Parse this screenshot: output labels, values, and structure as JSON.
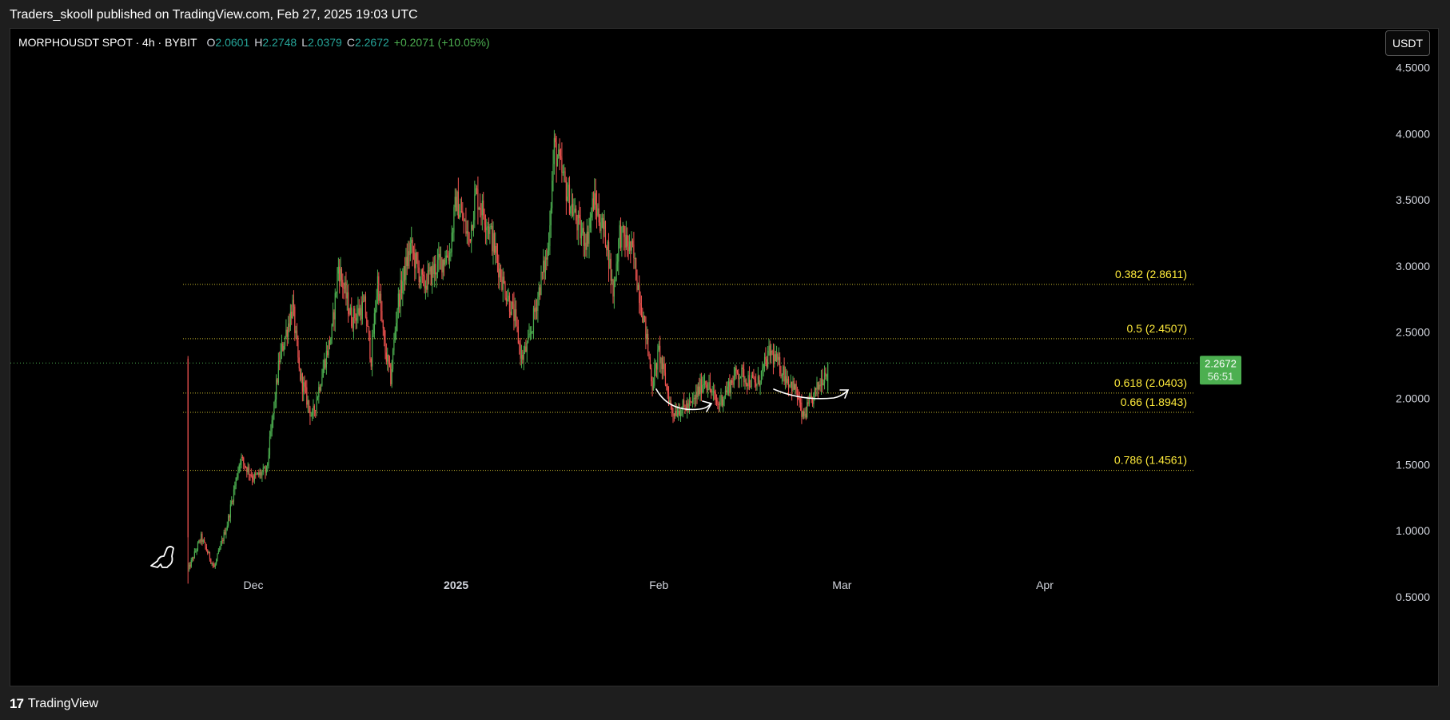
{
  "publish_info": "Traders_skooll published on TradingView.com, Feb 27, 2025 19:03 UTC",
  "symbol": {
    "name": "MORPHOUSDT SPOT · 4h · BYBIT",
    "o_label": "O",
    "o_value": "2.0601",
    "h_label": "H",
    "h_value": "2.2748",
    "l_label": "L",
    "l_value": "2.0379",
    "c_label": "C",
    "c_value": "2.2672",
    "change": "+0.2071 (+10.05%)"
  },
  "currency_button": "USDT",
  "footer": {
    "logo_mark": "17",
    "brand": "TradingView"
  },
  "colors": {
    "background": "#000000",
    "up": "#4caf50",
    "down": "#ef5350",
    "fib": "#ffeb3b",
    "price_tag": "#4caf50"
  },
  "chart_data": {
    "type": "candlestick",
    "price_scale": {
      "min": 0.3,
      "max": 4.6,
      "ticks": [
        "0.5000",
        "1.0000",
        "1.5000",
        "2.0000",
        "2.5000",
        "3.0000",
        "3.5000",
        "4.0000",
        "4.5000"
      ]
    },
    "time_labels": [
      {
        "label": "Dec",
        "date": "2024-12-01"
      },
      {
        "label": "2025",
        "date": "2025-01-01"
      },
      {
        "label": "Feb",
        "date": "2025-02-01"
      },
      {
        "label": "Mar",
        "date": "2025-03-01"
      },
      {
        "label": "Apr",
        "date": "2025-04-01"
      }
    ],
    "current_price": {
      "value": 2.2672,
      "label": "2.2672",
      "countdown": "56:51"
    },
    "fib_levels": [
      {
        "label": "0.382 (2.8611)",
        "value": 2.8611
      },
      {
        "label": "0.5 (2.4507)",
        "value": 2.4507
      },
      {
        "label": "0.618 (2.0403)",
        "value": 2.0403
      },
      {
        "label": "0.66 (1.8943)",
        "value": 1.8943
      },
      {
        "label": "0.786 (1.4561)",
        "value": 1.4561
      }
    ],
    "close_path": [
      [
        "2024-11-21",
        0.7
      ],
      [
        "2024-11-23",
        0.95
      ],
      [
        "2024-11-25",
        0.72
      ],
      [
        "2024-11-27",
        1.05
      ],
      [
        "2024-11-29",
        1.55
      ],
      [
        "2024-12-01",
        1.4
      ],
      [
        "2024-12-03",
        1.45
      ],
      [
        "2024-12-05",
        2.3
      ],
      [
        "2024-12-07",
        2.7
      ],
      [
        "2024-12-08",
        2.2
      ],
      [
        "2024-12-10",
        1.85
      ],
      [
        "2024-12-12",
        2.3
      ],
      [
        "2024-12-13",
        2.5
      ],
      [
        "2024-12-14",
        3.0
      ],
      [
        "2024-12-16",
        2.6
      ],
      [
        "2024-12-18",
        2.7
      ],
      [
        "2024-12-19",
        2.3
      ],
      [
        "2024-12-20",
        2.9
      ],
      [
        "2024-12-21",
        2.4
      ],
      [
        "2024-12-22",
        2.15
      ],
      [
        "2024-12-23",
        2.7
      ],
      [
        "2024-12-25",
        3.15
      ],
      [
        "2024-12-27",
        2.85
      ],
      [
        "2024-12-29",
        3.0
      ],
      [
        "2024-12-31",
        3.1
      ],
      [
        "2025-01-01",
        3.5
      ],
      [
        "2025-01-03",
        3.2
      ],
      [
        "2025-01-04",
        3.55
      ],
      [
        "2025-01-06",
        3.3
      ],
      [
        "2025-01-08",
        2.9
      ],
      [
        "2025-01-10",
        2.6
      ],
      [
        "2025-01-11",
        2.3
      ],
      [
        "2025-01-12",
        2.4
      ],
      [
        "2025-01-14",
        2.9
      ],
      [
        "2025-01-15",
        3.1
      ],
      [
        "2025-01-16",
        3.9
      ],
      [
        "2025-01-18",
        3.55
      ],
      [
        "2025-01-20",
        3.25
      ],
      [
        "2025-01-21",
        3.2
      ],
      [
        "2025-01-22",
        3.5
      ],
      [
        "2025-01-24",
        3.2
      ],
      [
        "2025-01-25",
        2.8
      ],
      [
        "2025-01-26",
        3.25
      ],
      [
        "2025-01-28",
        3.1
      ],
      [
        "2025-01-30",
        2.5
      ],
      [
        "2025-01-31",
        2.1
      ],
      [
        "2025-02-01",
        2.35
      ],
      [
        "2025-02-03",
        1.9
      ],
      [
        "2025-02-06",
        1.95
      ],
      [
        "2025-02-08",
        2.15
      ],
      [
        "2025-02-10",
        1.95
      ],
      [
        "2025-02-13",
        2.2
      ],
      [
        "2025-02-16",
        2.1
      ],
      [
        "2025-02-18",
        2.35
      ],
      [
        "2025-02-20",
        2.2
      ],
      [
        "2025-02-22",
        2.05
      ],
      [
        "2025-02-23",
        1.85
      ],
      [
        "2025-02-25",
        2.05
      ],
      [
        "2025-02-27",
        2.2672
      ]
    ],
    "annotations": [
      "curved-arrow-left",
      "curved-arrow-right"
    ]
  }
}
